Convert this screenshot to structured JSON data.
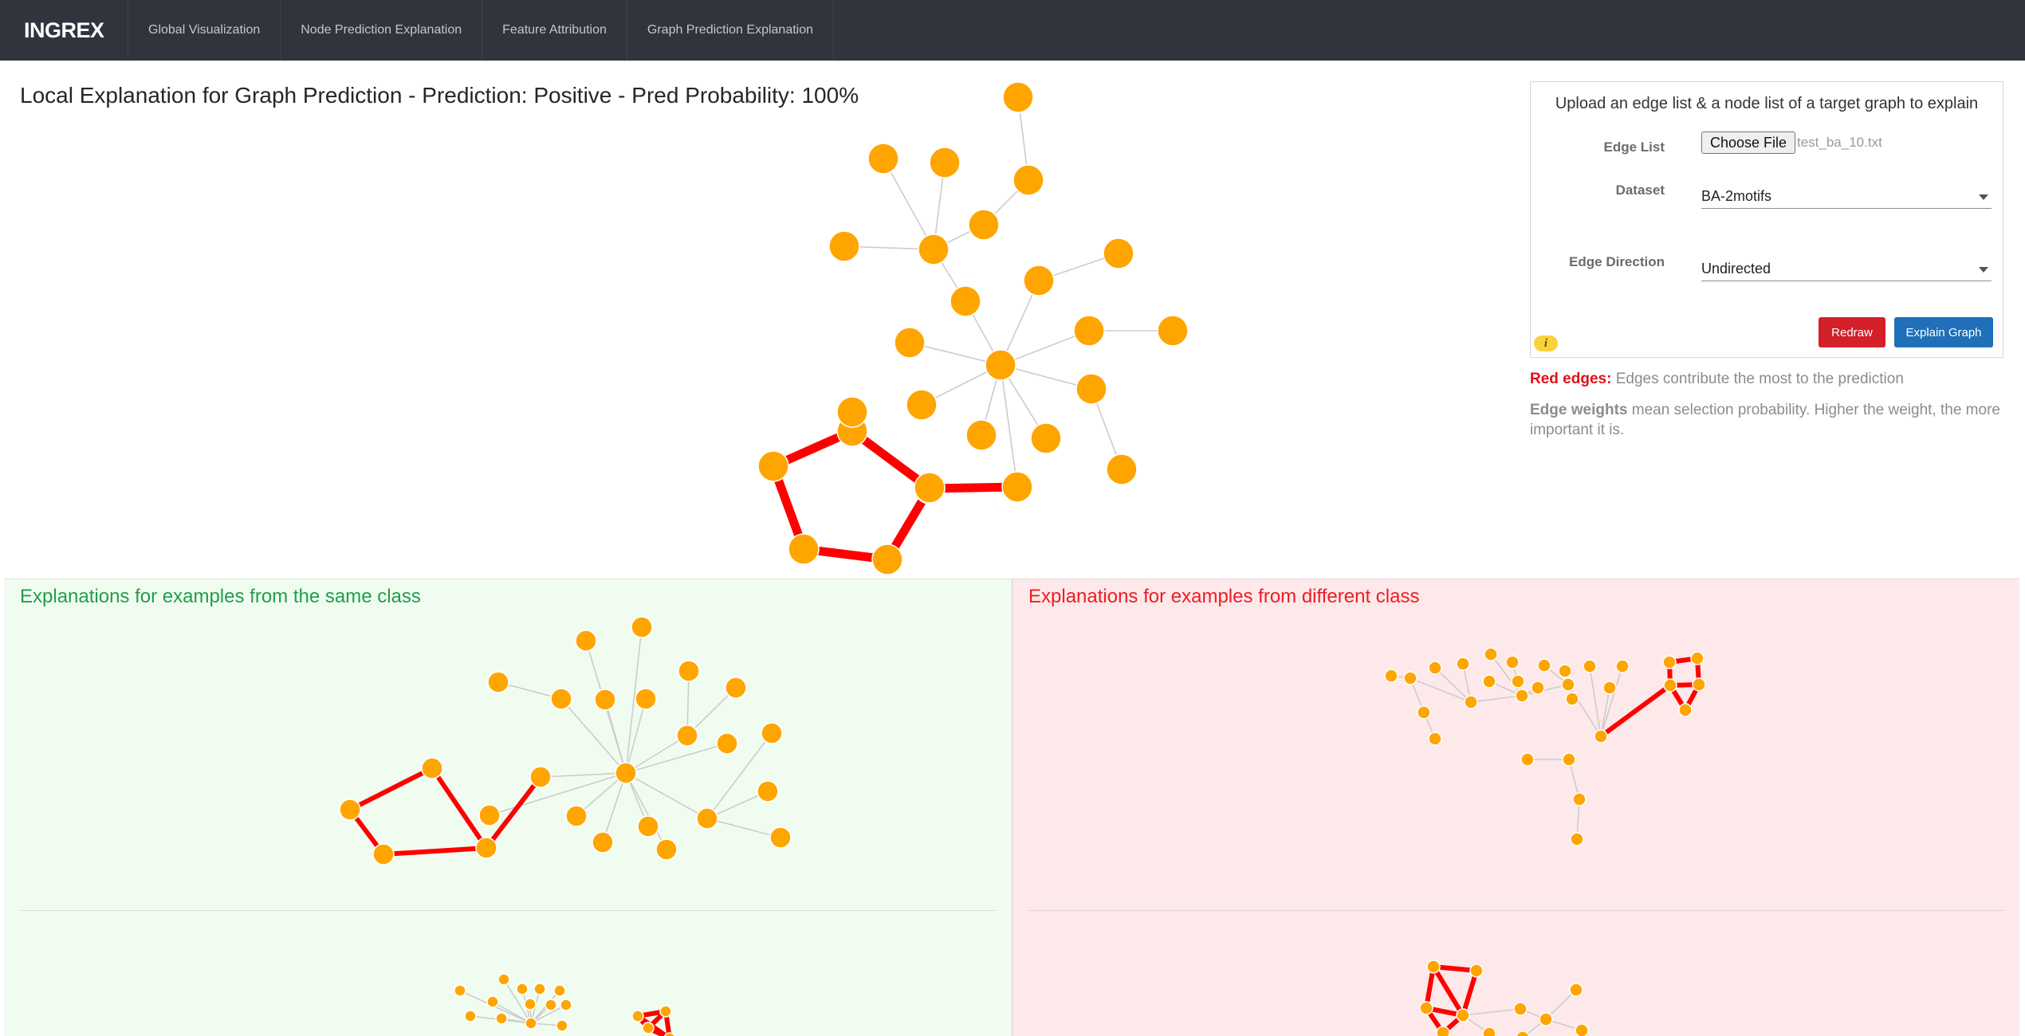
{
  "nav": {
    "brand": "INGREX",
    "items": [
      "Global Visualization",
      "Node Prediction Explanation",
      "Feature Attribution",
      "Graph Prediction Explanation"
    ]
  },
  "main": {
    "title": "Local Explanation for Graph Prediction - Prediction: Positive - Pred Probability: 100%"
  },
  "form": {
    "heading": "Upload an edge list & a node list of a target graph to explain",
    "edge_list_label": "Edge List",
    "choose_file_label": "Choose File",
    "file_name": "test_ba_10.txt",
    "dataset_label": "Dataset",
    "dataset_value": "BA-2motifs",
    "edge_direction_label": "Edge Direction",
    "edge_direction_value": "Undirected",
    "redraw_label": "Redraw",
    "explain_label": "Explain Graph",
    "info_icon": "i"
  },
  "legend": {
    "red_edges_label": "Red edges:",
    "red_edges_text": " Edges contribute the most to the prediction",
    "edge_weights_label": "Edge weights",
    "edge_weights_text": " mean selection probability. Higher the weight, the more important it is."
  },
  "panels": {
    "same_class_title": "Explanations for examples from the same class",
    "diff_class_title": "Explanations for examples from different class"
  },
  "colors": {
    "node": "#ffa500",
    "important_edge": "#ff0000",
    "normal_edge": "#cccccc",
    "navbar": "#2f343d",
    "same_panel_bg": "#f1fcf1",
    "diff_panel_bg": "#fee9ea"
  }
}
